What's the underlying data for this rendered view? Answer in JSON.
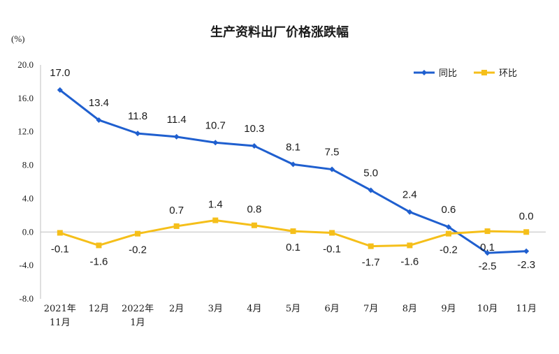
{
  "chart_data": {
    "type": "line",
    "title": "生产资料出厂价格涨跌幅",
    "ylabel": "(%)",
    "ylim": [
      -8.0,
      20.0
    ],
    "yticks": [
      "20.0",
      "16.0",
      "12.0",
      "8.0",
      "4.0",
      "0.0",
      "-4.0",
      "-8.0"
    ],
    "ytick_values": [
      20,
      16,
      12,
      8,
      4,
      0,
      -4,
      -8
    ],
    "categories": [
      [
        "2021年",
        "11月"
      ],
      [
        "12月"
      ],
      [
        "2022年",
        "1月"
      ],
      [
        "2月"
      ],
      [
        "3月"
      ],
      [
        "4月"
      ],
      [
        "5月"
      ],
      [
        "6月"
      ],
      [
        "7月"
      ],
      [
        "8月"
      ],
      [
        "9月"
      ],
      [
        "10月"
      ],
      [
        "11月"
      ]
    ],
    "legend_position": "top-right",
    "series": [
      {
        "name": "同比",
        "color": "#1f5fcf",
        "marker": "diamond",
        "values": [
          17.0,
          13.4,
          11.8,
          11.4,
          10.7,
          10.3,
          8.1,
          7.5,
          5.0,
          2.4,
          0.6,
          -2.5,
          -2.3
        ],
        "labels": [
          "17.0",
          "13.4",
          "11.8",
          "11.4",
          "10.7",
          "10.3",
          "8.1",
          "7.5",
          "5.0",
          "2.4",
          "0.6",
          "-2.5",
          "-2.3"
        ]
      },
      {
        "name": "环比",
        "color": "#f5bf1a",
        "marker": "square",
        "values": [
          -0.1,
          -1.6,
          -0.2,
          0.7,
          1.4,
          0.8,
          0.1,
          -0.1,
          -1.7,
          -1.6,
          -0.2,
          0.1,
          0.0
        ],
        "labels": [
          "-0.1",
          "-1.6",
          "-0.2",
          "0.7",
          "1.4",
          "0.8",
          "0.1",
          "-0.1",
          "-1.7",
          "-1.6",
          "-0.2",
          "0.1",
          "0.0"
        ]
      }
    ]
  }
}
